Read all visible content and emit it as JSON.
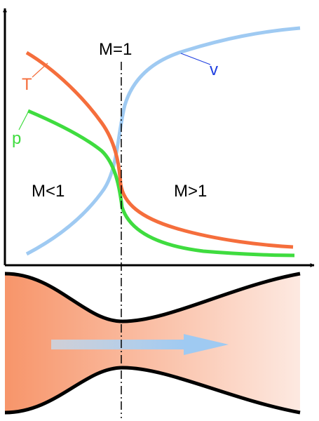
{
  "labels": {
    "mach_one": "M=1",
    "subsonic": "M<1",
    "supersonic": "M>1",
    "temperature": "T",
    "pressure": "p",
    "velocity": "v"
  },
  "colors": {
    "temperature": "#f56e3c",
    "pressure": "#3fdc3f",
    "velocity": "#9fcaf2",
    "velocity_label": "#1f3fe0",
    "nozzle_fill_inlet": "#f7956a",
    "nozzle_fill_outlet": "#fde9e1",
    "axis": "#000000"
  },
  "icons": {
    "flow_direction": "arrow-right-icon"
  }
}
